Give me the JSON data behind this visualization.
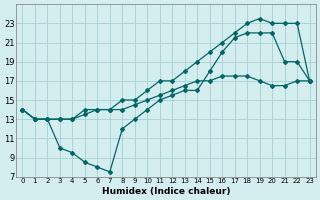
{
  "xlabel": "Humidex (Indice chaleur)",
  "bg_color": "#d4eef0",
  "grid_color": "#aed4d8",
  "line_color": "#006666",
  "xlim": [
    -0.5,
    23.5
  ],
  "ylim": [
    7,
    25
  ],
  "xticks": [
    0,
    1,
    2,
    3,
    4,
    5,
    6,
    7,
    8,
    9,
    10,
    11,
    12,
    13,
    14,
    15,
    16,
    17,
    18,
    19,
    20,
    21,
    22,
    23
  ],
  "yticks": [
    7,
    9,
    11,
    13,
    15,
    17,
    19,
    21,
    23
  ],
  "line1_x": [
    0,
    1,
    2,
    3,
    4,
    5,
    6,
    7,
    8,
    9,
    10,
    11,
    12,
    13,
    14,
    15,
    16,
    17,
    18,
    19,
    20,
    21,
    22,
    23
  ],
  "line1_y": [
    14,
    13,
    13,
    13,
    13,
    14,
    14,
    14,
    15,
    15,
    16,
    17,
    17,
    18,
    19,
    20,
    21,
    22,
    23,
    23.5,
    23,
    23,
    23,
    17
  ],
  "line2_x": [
    0,
    1,
    2,
    3,
    4,
    5,
    6,
    7,
    8,
    9,
    10,
    11,
    12,
    13,
    14,
    15,
    16,
    17,
    18,
    19,
    20,
    21,
    22,
    23
  ],
  "line2_y": [
    14,
    13,
    13,
    10,
    9.5,
    8.5,
    8,
    7.5,
    12,
    13,
    14,
    15,
    15.5,
    16,
    16,
    18,
    20,
    21.5,
    22,
    22,
    22,
    19,
    19,
    17
  ],
  "line3_x": [
    0,
    1,
    2,
    3,
    4,
    5,
    6,
    7,
    8,
    9,
    10,
    11,
    12,
    13,
    14,
    15,
    16,
    17,
    18,
    19,
    20,
    21,
    22,
    23
  ],
  "line3_y": [
    14,
    13,
    13,
    13,
    13,
    13.5,
    14,
    14,
    14,
    14.5,
    15,
    15.5,
    16,
    16.5,
    17,
    17,
    17.5,
    17.5,
    17.5,
    17,
    16.5,
    16.5,
    17,
    17
  ]
}
